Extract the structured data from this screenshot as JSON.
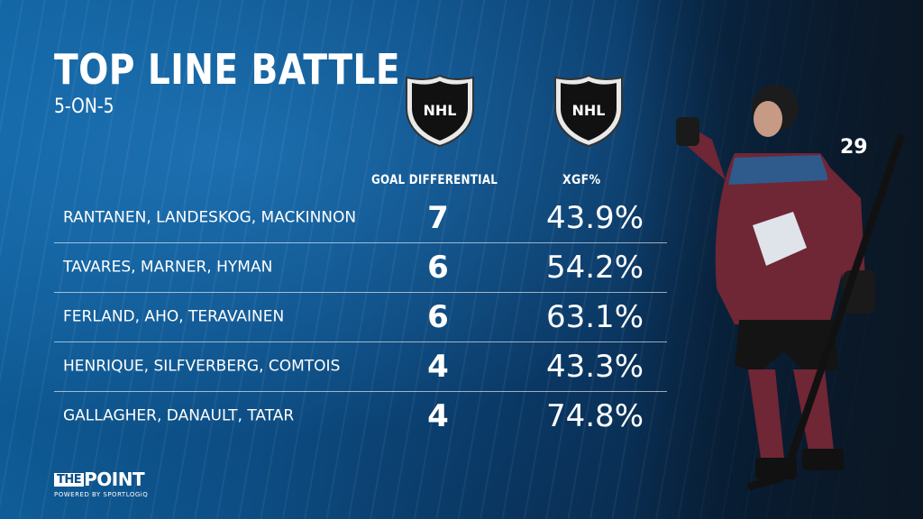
{
  "title": "TOP LINE BATTLE",
  "subtitle": "5-ON-5",
  "logo_left_text": "NHL",
  "logo_right_text": "NHL",
  "columns": {
    "goal_differential": "GOAL DIFFERENTIAL",
    "xgf": "XGF%"
  },
  "rows": [
    {
      "names": "RANTANEN, LANDESKOG, MACKINNON",
      "gd": "7",
      "xgf": "43.9%"
    },
    {
      "names": "TAVARES, MARNER, HYMAN",
      "gd": "6",
      "xgf": "54.2%"
    },
    {
      "names": "FERLAND, AHO, TERAVAINEN",
      "gd": "6",
      "xgf": "63.1%"
    },
    {
      "names": "HENRIQUE, SILFVERBERG, COMTOIS",
      "gd": "4",
      "xgf": "43.3%"
    },
    {
      "names": "GALLAGHER, DANAULT, TATAR",
      "gd": "4",
      "xgf": "74.8%"
    }
  ],
  "brand": {
    "the": "THE",
    "point": "POINT",
    "powered": "POWERED BY SPORTLOGiQ"
  },
  "jersey_number": "29",
  "colors": {
    "background": "#0d4f86",
    "text": "#ffffff",
    "jersey": "#6f2635"
  }
}
